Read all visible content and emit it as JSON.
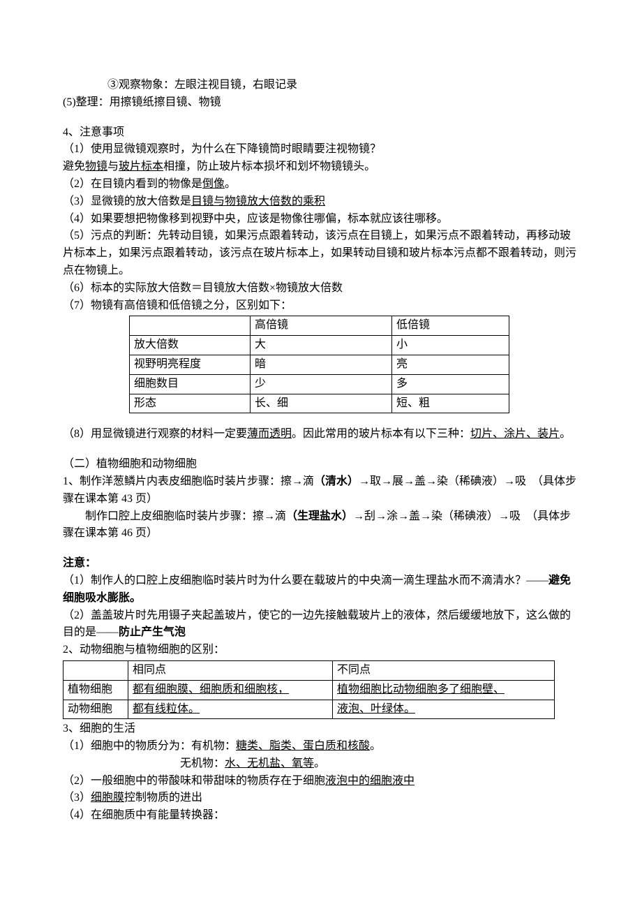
{
  "line1": "③观察物象：左眼注视目镜，右眼记录",
  "line2": "(5)整理：用擦镜纸擦目镜、物镜",
  "sec4_title": "4、注意事项",
  "p4_1": "（1）使用显微镜观察时，为什么在下降镜筒时眼睛要注视物镜？",
  "p4_1b_a": "避免",
  "p4_1b_u1": "物镜",
  "p4_1b_b": "与",
  "p4_1b_u2": "玻片标本",
  "p4_1b_c": "相撞，防止玻片标本损坏和划坏物镜镜头。",
  "p4_2a": "（2）在目镜内看到的物像是",
  "p4_2u": "倒像",
  "p4_2b": "。",
  "p4_3a": "（3）显微镜的放大倍数是",
  "p4_3u": "目镜与物镜放大倍数的乘积",
  "p4_4": "（4）如果要想把物像移到视野中央，应该是物像往哪偏，标本就应该往哪移。",
  "p4_5": "（5）污点的判断：先转动目镜，如果污点跟着转动，该污点在目镜上，如果污点不跟着转动，再移动玻片标本上，如果污点跟着转动，该污点在玻片标本上，如果转动目镜和玻片标本污点都不跟着转动，则污点在物镜上。",
  "p4_6": "（6）标本的实际放大倍数＝目镜放大倍数×物镜放大倍数",
  "p4_7": "（7）物镜有高倍镜和低倍镜之分，区别如下：",
  "lens_table": {
    "rows": [
      [
        "",
        "高倍镜",
        "低倍镜"
      ],
      [
        "放大倍数",
        "大",
        "小"
      ],
      [
        "视野明亮程度",
        "暗",
        "亮"
      ],
      [
        "细胞数目",
        "少",
        "多"
      ],
      [
        "形态",
        "长、细",
        "短、粗"
      ]
    ]
  },
  "p4_8a": "（8）用显微镜进行观察的材料一定要",
  "p4_8u1": "薄而透明",
  "p4_8b": "。因此常用的玻片标本有以下三种：",
  "p4_8u2": "切片、涂片、装片",
  "p4_8c": "。",
  "sec2_title": "（二）植物细胞和动物细胞",
  "p2_1a": "1、制作洋葱鳞片内表皮细胞临时装片步骤：擦→滴",
  "p2_1b": "（清水）",
  "p2_1c": "→取→展→盖→染（稀碘液）→吸　（具体步骤在课本第 43 页）",
  "p2_2a": "　　制作口腔上皮细胞临时装片步骤：擦→滴",
  "p2_2b": "（生理盐水）",
  "p2_2c": "→刮→涂→盖→染（稀碘液）→吸　（具体步骤在课本第 46 页）",
  "note_title": "注意：",
  "note1a": "（1）制作人的口腔上皮细胞临时装片时为什么要在载玻片的中央滴一滴生理盐水而不滴清水？——",
  "note1b": "避免细胞吸水膨胀。",
  "note2a": "（2）盖盖玻片时先用镊子夹起盖玻片，使它的一边先接触载玻片上的液体，然后缓缓地放下，这么做的目的是——",
  "note2b": "防止产生气泡",
  "p2_table_title": "2、动物细胞与植物细胞的区别：",
  "cell_table": {
    "header": [
      "",
      "相同点",
      "不同点"
    ],
    "plant_label": "植物细胞",
    "animal_label": "动物细胞",
    "same_line1": "都有细胞膜、细胞质和细胞核，",
    "same_line2": "都有线粒体。",
    "diff_line1": "植物细胞比动物细胞多了细胞壁、",
    "diff_line2": "液泡、叶绿体。"
  },
  "p3_title": "3、细胞的生活",
  "p3_1a": "（1）细胞中的物质分为：有机物：",
  "p3_1u": "糖类、脂类、蛋白质和核酸",
  "p3_1b": "。",
  "p3_1c_a": "无机物：",
  "p3_1c_u": "水、无机盐、氧等",
  "p3_1c_b": "。",
  "p3_2a": "（2）一般细胞中的带酸味和带甜味的物质存在于细胞",
  "p3_2u": "液泡中的细胞液中",
  "p3_3a": "（3）",
  "p3_3u": "细胞膜",
  "p3_3b": "控制物质的进出",
  "p3_4": "（4）在细胞质中有能量转换器："
}
